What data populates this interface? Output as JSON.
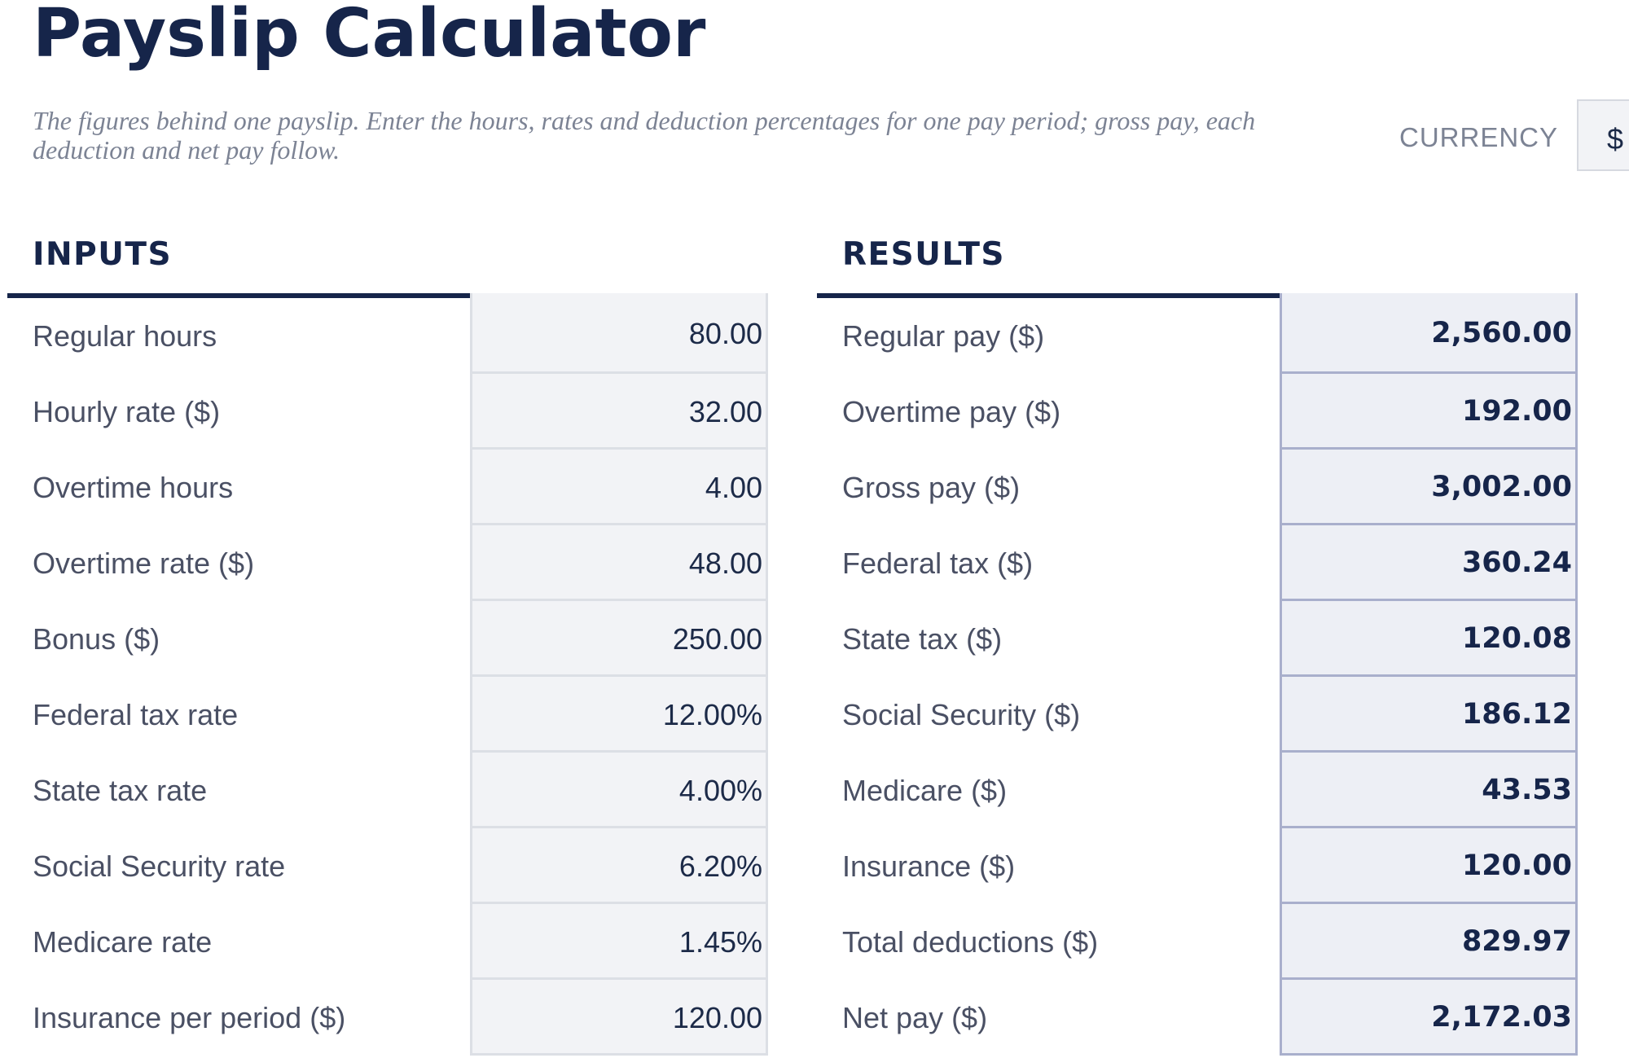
{
  "header": {
    "title": "Payslip Calculator",
    "subtitle": "The figures behind one payslip. Enter the hours, rates and deduction percentages for one pay period; gross pay, each deduction and net pay follow."
  },
  "currency": {
    "label": "CURRENCY",
    "value": "$"
  },
  "inputs": {
    "heading": "INPUTS",
    "rows": [
      {
        "label": "Regular hours",
        "value": "80.00"
      },
      {
        "label": "Hourly rate ($)",
        "value": "32.00"
      },
      {
        "label": "Overtime hours",
        "value": "4.00"
      },
      {
        "label": "Overtime rate ($)",
        "value": "48.00"
      },
      {
        "label": "Bonus ($)",
        "value": "250.00"
      },
      {
        "label": "Federal tax rate",
        "value": "12.00%"
      },
      {
        "label": "State tax rate",
        "value": "4.00%"
      },
      {
        "label": "Social Security rate",
        "value": "6.20%"
      },
      {
        "label": "Medicare rate",
        "value": "1.45%"
      },
      {
        "label": "Insurance per period ($)",
        "value": "120.00"
      }
    ]
  },
  "results": {
    "heading": "RESULTS",
    "rows": [
      {
        "label": "Regular pay ($)",
        "value": "2,560.00"
      },
      {
        "label": "Overtime pay ($)",
        "value": "192.00"
      },
      {
        "label": "Gross pay ($)",
        "value": "3,002.00"
      },
      {
        "label": "Federal tax ($)",
        "value": "360.24"
      },
      {
        "label": "State tax ($)",
        "value": "120.08"
      },
      {
        "label": "Social Security ($)",
        "value": "186.12"
      },
      {
        "label": "Medicare ($)",
        "value": "43.53"
      },
      {
        "label": "Insurance ($)",
        "value": "120.00"
      },
      {
        "label": "Total deductions ($)",
        "value": "829.97"
      },
      {
        "label": "Net pay ($)",
        "value": "2,172.03"
      }
    ]
  }
}
